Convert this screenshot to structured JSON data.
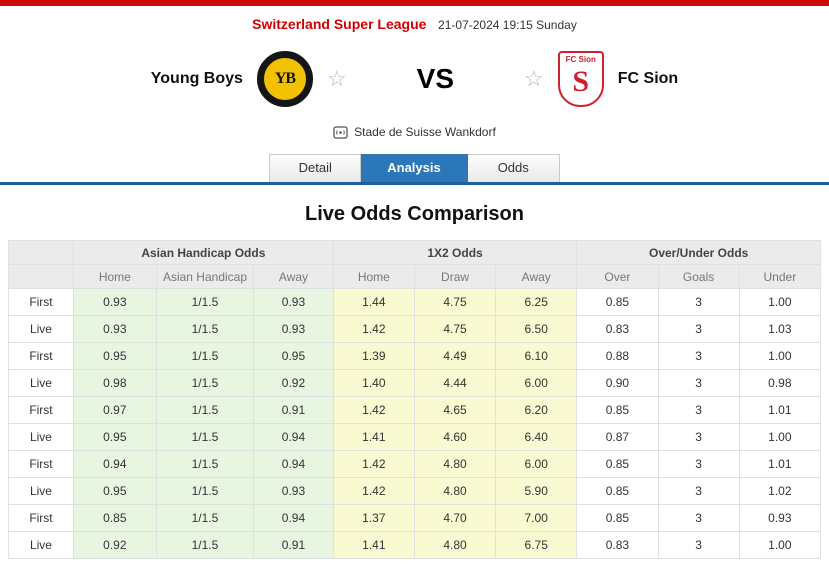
{
  "top": {
    "league": "Switzerland Super League",
    "datetime": "21-07-2024 19:15 Sunday"
  },
  "match": {
    "home_team": "Young Boys",
    "away_team": "FC Sion",
    "vs": "VS",
    "venue": "Stade de Suisse Wankdorf",
    "home_logo_text": "YB",
    "away_logo_fc": "FC Sion",
    "away_logo_s": "S",
    "star": "☆"
  },
  "tabs": [
    {
      "label": "Detail",
      "active": false
    },
    {
      "label": "Analysis",
      "active": true
    },
    {
      "label": "Odds",
      "active": false
    }
  ],
  "colors": {
    "accent_red": "#cf0a0a",
    "active_tab_blue": "#2b77b8",
    "asian_handicap_bg": "#e8f5e0",
    "x12_bg": "#fafad2"
  },
  "section_title": "Live Odds Comparison",
  "chart_data": {
    "type": "table",
    "title": "Live Odds Comparison",
    "groups": [
      "Asian Handicap Odds",
      "1X2 Odds",
      "Over/Under Odds"
    ],
    "columns": [
      "Home",
      "Asian Handicap",
      "Away",
      "Home",
      "Draw",
      "Away",
      "Over",
      "Goals",
      "Under"
    ],
    "rows": [
      {
        "label": "First",
        "cells": [
          "0.93",
          "1/1.5",
          "0.93",
          "1.44",
          "4.75",
          "6.25",
          "0.85",
          "3",
          "1.00"
        ]
      },
      {
        "label": "Live",
        "cells": [
          "0.93",
          "1/1.5",
          "0.93",
          "1.42",
          "4.75",
          "6.50",
          "0.83",
          "3",
          "1.03"
        ]
      },
      {
        "label": "First",
        "cells": [
          "0.95",
          "1/1.5",
          "0.95",
          "1.39",
          "4.49",
          "6.10",
          "0.88",
          "3",
          "1.00"
        ]
      },
      {
        "label": "Live",
        "cells": [
          "0.98",
          "1/1.5",
          "0.92",
          "1.40",
          "4.44",
          "6.00",
          "0.90",
          "3",
          "0.98"
        ]
      },
      {
        "label": "First",
        "cells": [
          "0.97",
          "1/1.5",
          "0.91",
          "1.42",
          "4.65",
          "6.20",
          "0.85",
          "3",
          "1.01"
        ]
      },
      {
        "label": "Live",
        "cells": [
          "0.95",
          "1/1.5",
          "0.94",
          "1.41",
          "4.60",
          "6.40",
          "0.87",
          "3",
          "1.00"
        ]
      },
      {
        "label": "First",
        "cells": [
          "0.94",
          "1/1.5",
          "0.94",
          "1.42",
          "4.80",
          "6.00",
          "0.85",
          "3",
          "1.01"
        ]
      },
      {
        "label": "Live",
        "cells": [
          "0.95",
          "1/1.5",
          "0.93",
          "1.42",
          "4.80",
          "5.90",
          "0.85",
          "3",
          "1.02"
        ]
      },
      {
        "label": "First",
        "cells": [
          "0.85",
          "1/1.5",
          "0.94",
          "1.37",
          "4.70",
          "7.00",
          "0.85",
          "3",
          "0.93"
        ]
      },
      {
        "label": "Live",
        "cells": [
          "0.92",
          "1/1.5",
          "0.91",
          "1.41",
          "4.80",
          "6.75",
          "0.83",
          "3",
          "1.00"
        ]
      }
    ]
  }
}
